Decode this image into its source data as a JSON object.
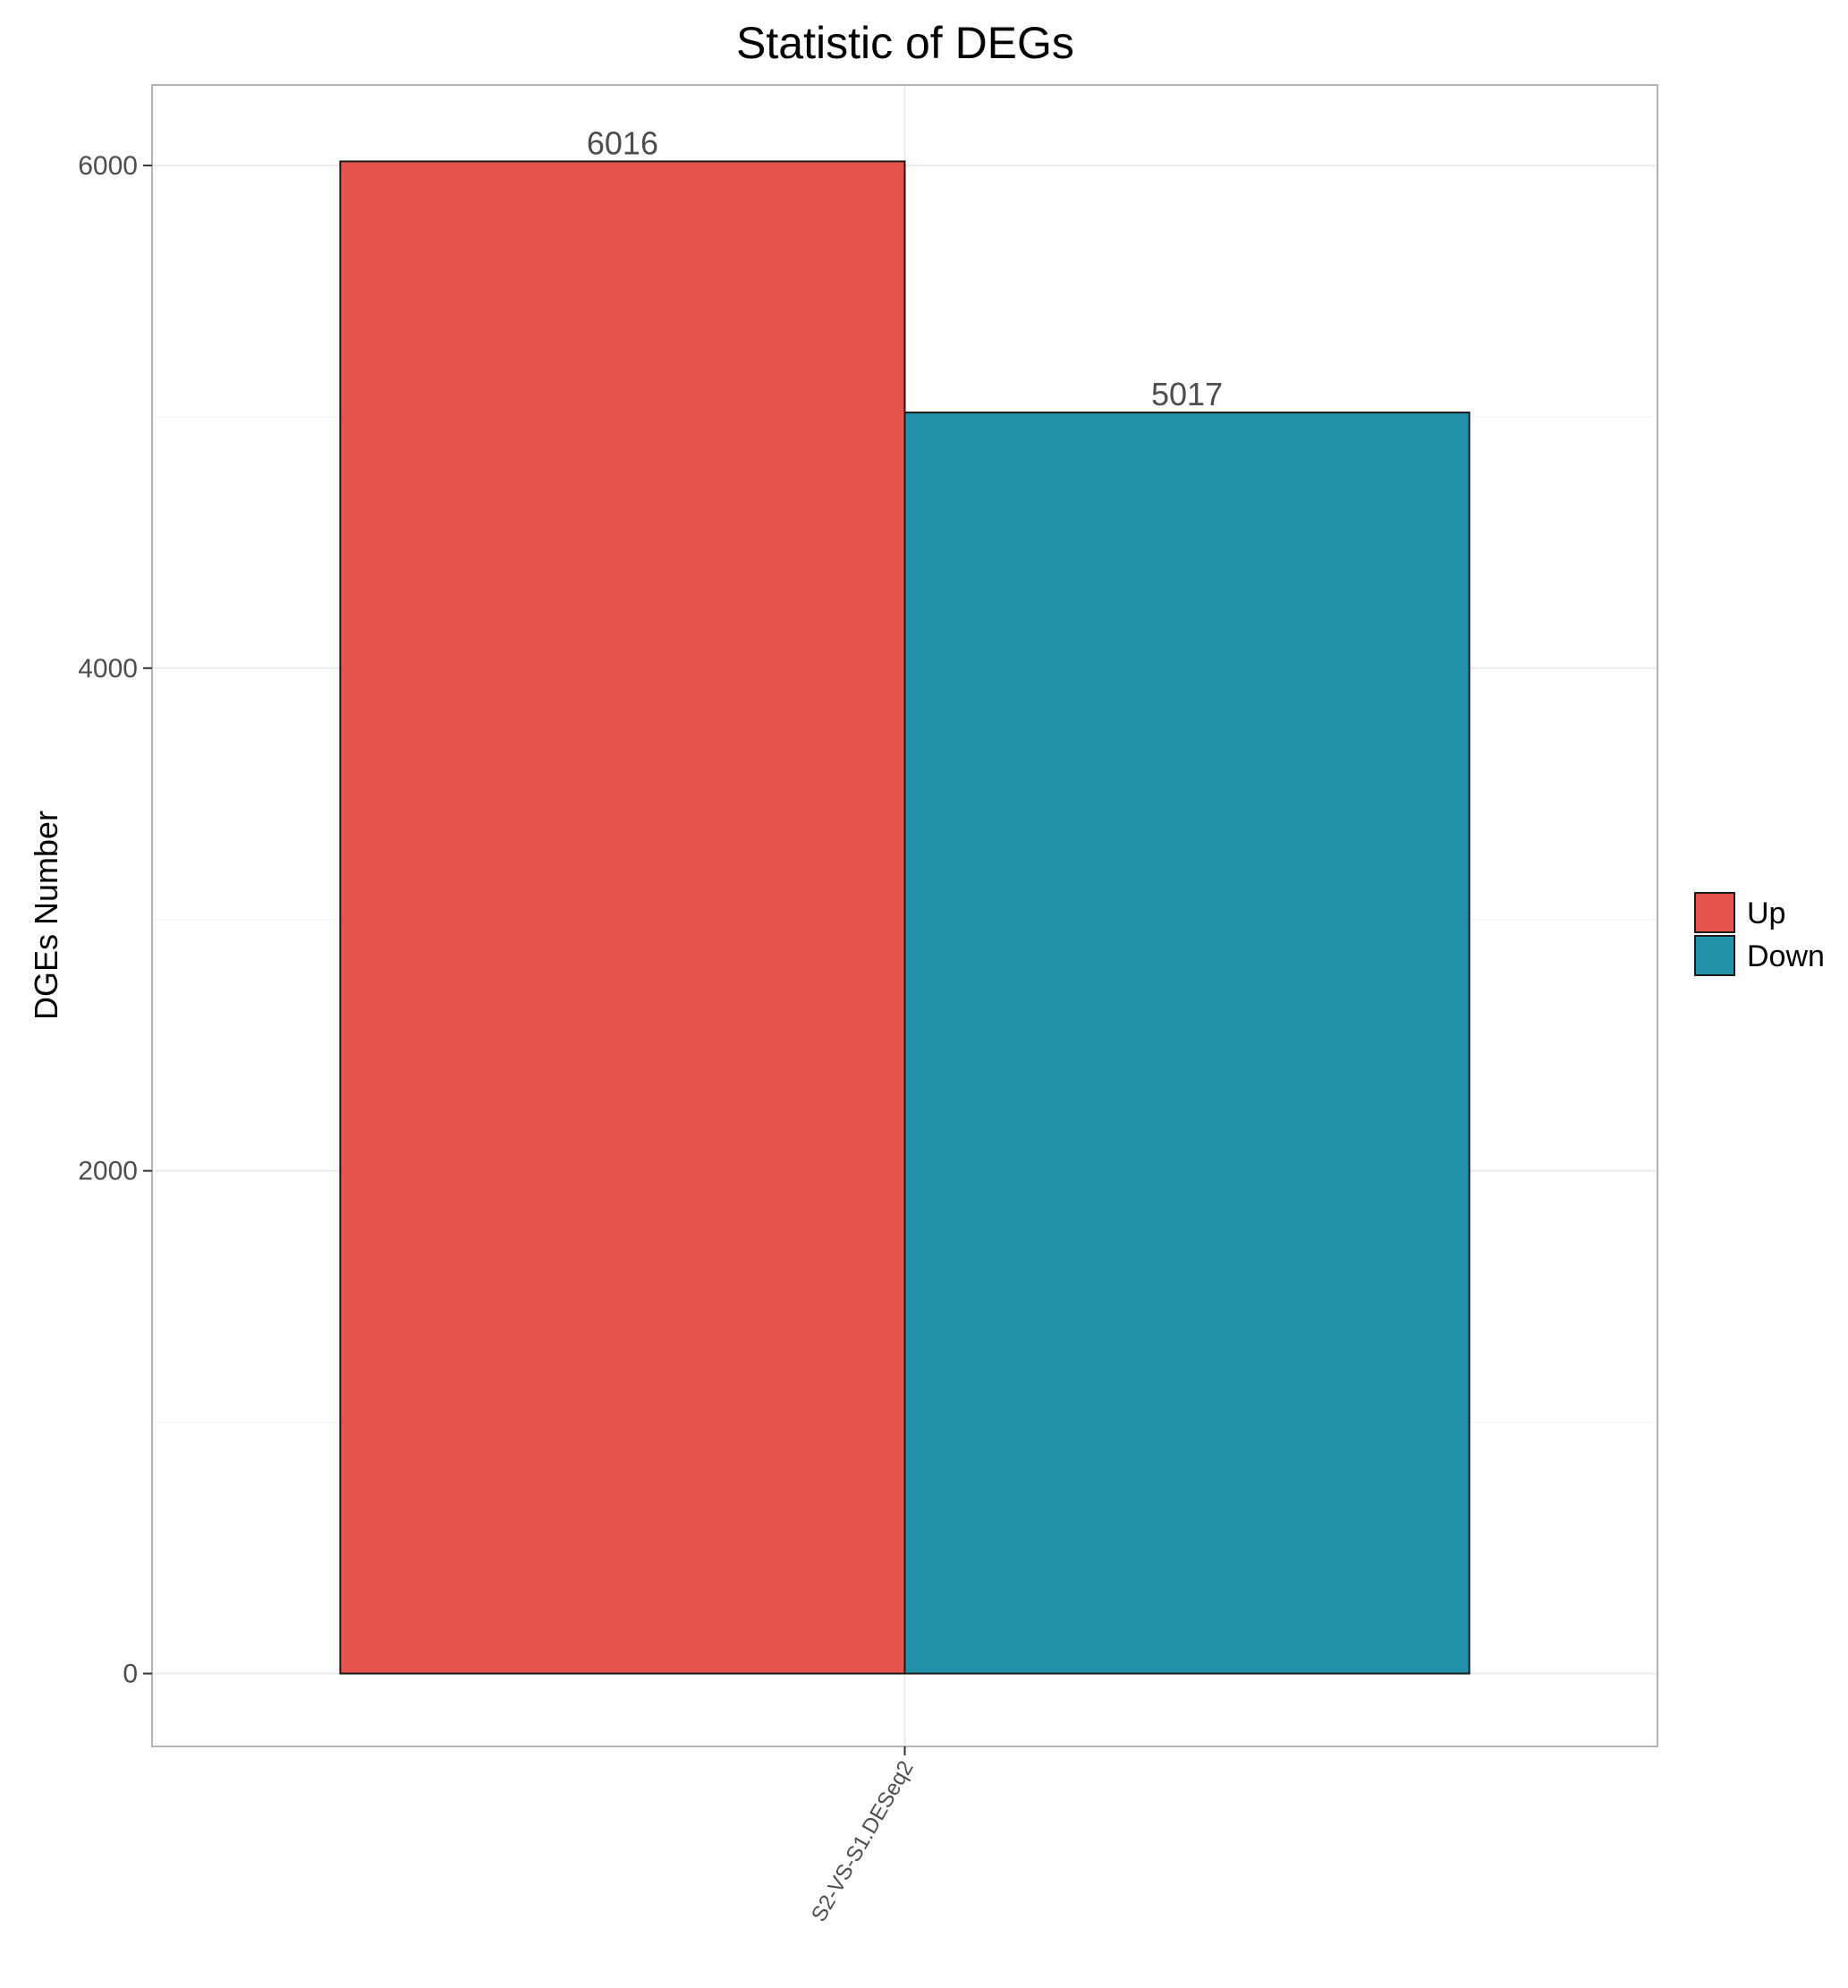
{
  "chart_data": {
    "type": "bar",
    "title": "Statistic of DEGs",
    "xlabel": "",
    "ylabel": "DGEs Number",
    "categories": [
      "S2-VS-S1.DESeq2"
    ],
    "series": [
      {
        "name": "Up",
        "color": "#e5534d",
        "values": [
          6016
        ]
      },
      {
        "name": "Down",
        "color": "#2290a7",
        "values": [
          5017
        ]
      }
    ],
    "ylim": [
      -290,
      6320
    ],
    "yticks": [
      0,
      2000,
      4000,
      6000
    ],
    "ytick_labels": [
      "0",
      "2000",
      "4000",
      "6000"
    ],
    "data_labels": [
      "6016",
      "5017"
    ],
    "grid": true,
    "legend_position": "right"
  }
}
